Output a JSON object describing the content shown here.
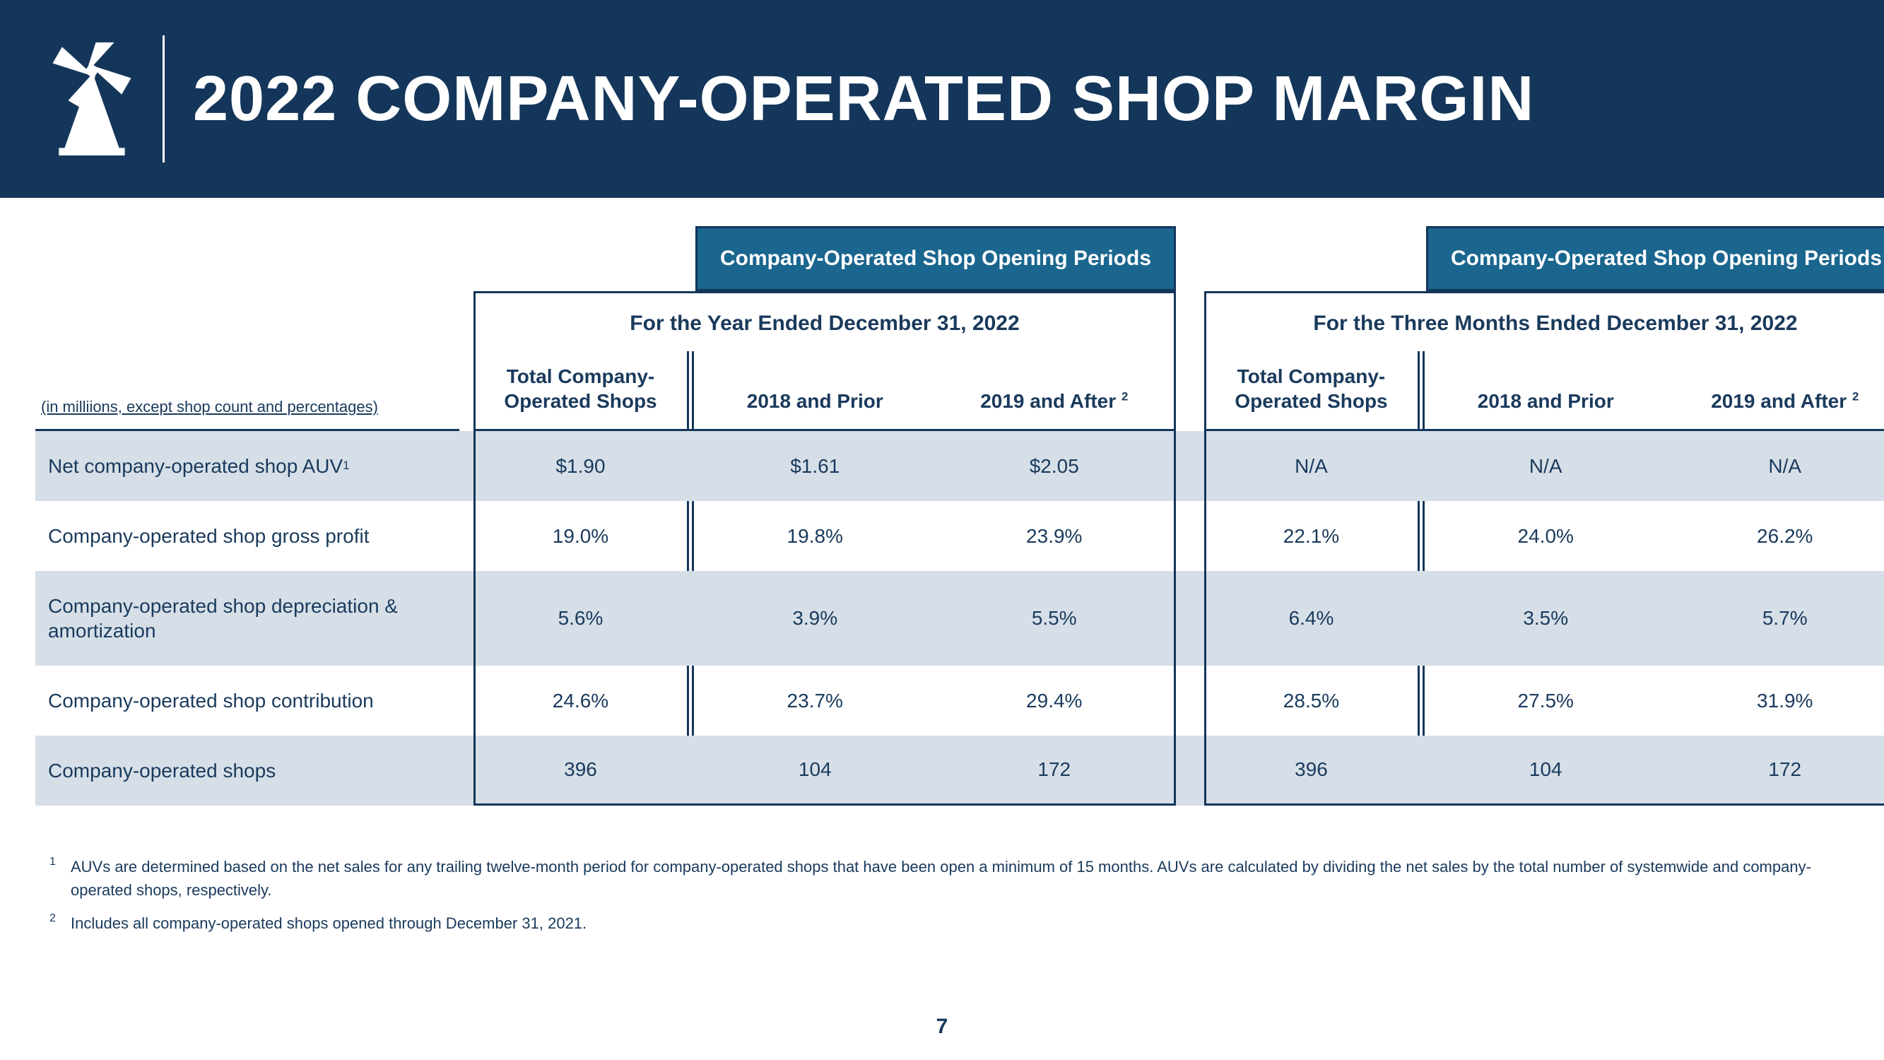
{
  "header": {
    "title": "2022 COMPANY-OPERATED SHOP MARGIN",
    "background_color": "#14365a",
    "title_color": "#ffffff"
  },
  "table": {
    "units_note": "(in milliions, except shop count and percentages)",
    "period_banner_label": "Company-Operated Shop Opening Periods",
    "banner_bg": "#1a668f",
    "row_shade_color": "#d6dfe8",
    "border_color": "#14365a",
    "sections": [
      {
        "subperiod": "For the Year Ended December 31, 2022"
      },
      {
        "subperiod": "For the Three Months Ended December 31, 2022"
      }
    ],
    "col_headers": {
      "total": "Total Company-Operated Shops",
      "prior": "2018 and Prior",
      "after": "2019 and After",
      "after_sup": "2"
    },
    "rows": [
      {
        "label": "Net company-operated shop AUV",
        "sup": "1",
        "shaded": true,
        "year": {
          "total": "$1.90",
          "prior": "$1.61",
          "after": "$2.05"
        },
        "quarter": {
          "total": "N/A",
          "prior": "N/A",
          "after": "N/A"
        }
      },
      {
        "label": "Company-operated shop gross profit",
        "shaded": false,
        "year": {
          "total": "19.0%",
          "prior": "19.8%",
          "after": "23.9%"
        },
        "quarter": {
          "total": "22.1%",
          "prior": "24.0%",
          "after": "26.2%"
        }
      },
      {
        "label": "Company-operated shop depreciation & amortization",
        "shaded": true,
        "year": {
          "total": "5.6%",
          "prior": "3.9%",
          "after": "5.5%"
        },
        "quarter": {
          "total": "6.4%",
          "prior": "3.5%",
          "after": "5.7%"
        }
      },
      {
        "label": "Company-operated shop contribution",
        "shaded": false,
        "year": {
          "total": "24.6%",
          "prior": "23.7%",
          "after": "29.4%"
        },
        "quarter": {
          "total": "28.5%",
          "prior": "27.5%",
          "after": "31.9%"
        }
      },
      {
        "label": "Company-operated shops",
        "shaded": true,
        "last": true,
        "year": {
          "total": "396",
          "prior": "104",
          "after": "172"
        },
        "quarter": {
          "total": "396",
          "prior": "104",
          "after": "172"
        }
      }
    ]
  },
  "footnotes": [
    {
      "num": "1",
      "text": "AUVs are determined based on the net sales for any trailing twelve-month period for company-operated shops that have been open a minimum of 15 months. AUVs are calculated by dividing the net sales by the total number of systemwide and company-operated shops, respectively."
    },
    {
      "num": "2",
      "text": "Includes all company-operated shops opened through December 31, 2021."
    }
  ],
  "page_number": "7"
}
